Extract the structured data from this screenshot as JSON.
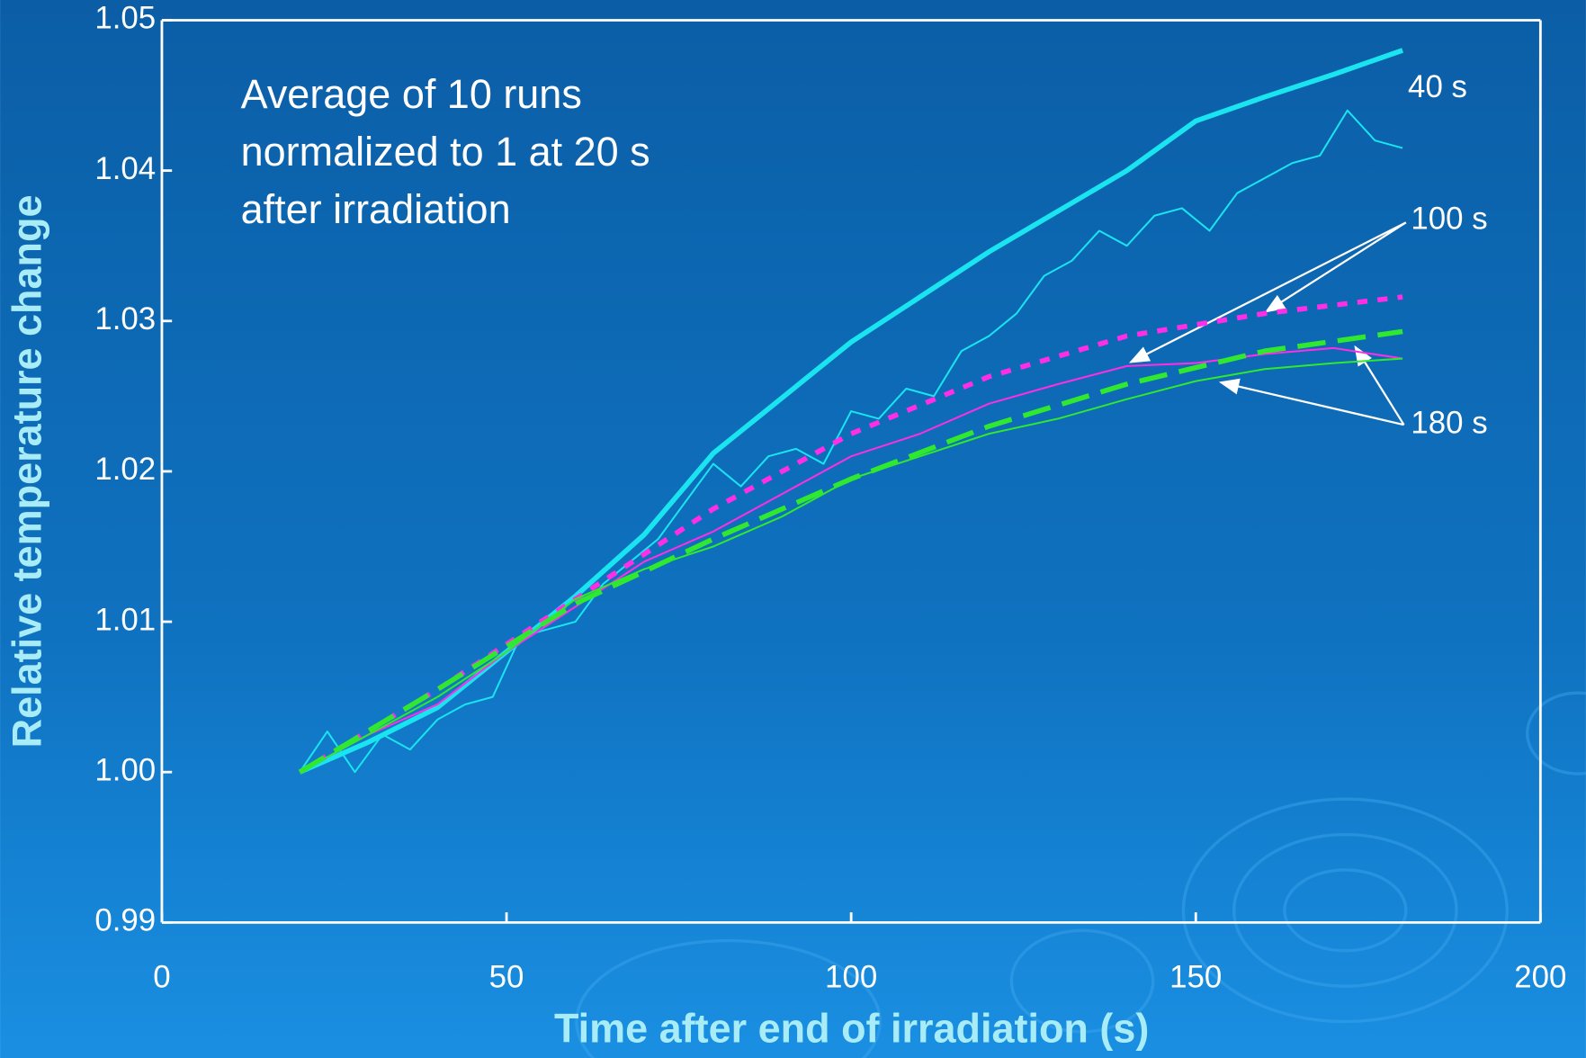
{
  "chart_data": {
    "type": "line",
    "x_label": "Time after end of irradiation (s)",
    "y_label": "Relative temperature change",
    "xlim": [
      0,
      200
    ],
    "xticks": [
      0,
      50,
      100,
      150,
      200
    ],
    "ylim": [
      0.99,
      1.05
    ],
    "yticks": [
      0.99,
      {
        "value": 1,
        "label": "1.00"
      },
      1.01,
      1.02,
      1.03,
      1.04,
      1.05
    ],
    "series": [
      {
        "color": "#19e4f0",
        "style": "thick",
        "x": [
          20,
          30,
          40,
          50,
          60,
          70,
          80,
          90,
          100,
          110,
          120,
          130,
          140,
          150,
          160,
          170,
          180
        ],
        "values": [
          1.0,
          1.002,
          1.0043,
          1.008,
          1.0117,
          1.0158,
          1.0212,
          1.0249,
          1.0286,
          1.0316,
          1.0346,
          1.0373,
          1.04,
          1.0433,
          1.0449,
          1.0464,
          1.048
        ]
      },
      {
        "color": "#19e4f0",
        "style": "thin",
        "x": [
          20,
          24,
          28,
          32,
          36,
          40,
          44,
          48,
          52,
          56,
          60,
          64,
          68,
          72,
          76,
          80,
          84,
          88,
          92,
          96,
          100,
          104,
          108,
          112,
          116,
          120,
          124,
          128,
          132,
          136,
          140,
          144,
          148,
          152,
          156,
          160,
          164,
          168,
          172,
          176,
          180
        ],
        "values": [
          1.0,
          1.0027,
          1.0,
          1.0025,
          1.0015,
          1.0035,
          1.0045,
          1.005,
          1.009,
          1.0095,
          1.01,
          1.0125,
          1.014,
          1.0155,
          1.018,
          1.0205,
          1.019,
          1.021,
          1.0215,
          1.0205,
          1.024,
          1.0235,
          1.0255,
          1.025,
          1.028,
          1.029,
          1.0305,
          1.033,
          1.034,
          1.036,
          1.035,
          1.037,
          1.0375,
          1.036,
          1.0385,
          1.0395,
          1.0405,
          1.041,
          1.044,
          1.042,
          1.0415
        ]
      },
      {
        "color": "#ff2ee6",
        "style": "dotted",
        "x": [
          20,
          40,
          60,
          80,
          100,
          120,
          140,
          160,
          180
        ],
        "values": [
          1.0,
          1.0055,
          1.0115,
          1.0175,
          1.0225,
          1.0263,
          1.029,
          1.0305,
          1.0316
        ]
      },
      {
        "color": "#ff2ee6",
        "style": "thin",
        "x": [
          20,
          30,
          40,
          50,
          60,
          70,
          80,
          90,
          100,
          110,
          120,
          130,
          140,
          150,
          160,
          170,
          180
        ],
        "values": [
          1.0,
          1.0025,
          1.0045,
          1.008,
          1.011,
          1.014,
          1.016,
          1.0185,
          1.021,
          1.0225,
          1.0245,
          1.0258,
          1.027,
          1.0272,
          1.0278,
          1.0282,
          1.0275
        ]
      },
      {
        "color": "#2fe82f",
        "style": "dashed",
        "x": [
          20,
          40,
          60,
          80,
          100,
          120,
          140,
          160,
          180
        ],
        "values": [
          1.0,
          1.0055,
          1.0112,
          1.0155,
          1.0195,
          1.023,
          1.0258,
          1.028,
          1.0293
        ]
      },
      {
        "color": "#2fe82f",
        "style": "thin",
        "x": [
          20,
          30,
          40,
          50,
          60,
          70,
          80,
          90,
          100,
          110,
          120,
          130,
          140,
          150,
          160,
          170,
          180
        ],
        "values": [
          1.0,
          1.0025,
          1.005,
          1.008,
          1.0115,
          1.0135,
          1.015,
          1.017,
          1.0195,
          1.021,
          1.0225,
          1.0235,
          1.0248,
          1.026,
          1.0268,
          1.0272,
          1.0275
        ]
      }
    ],
    "annotations": [
      "40 s",
      "100 s",
      "180 s"
    ],
    "note": [
      "Average of 10 runs",
      "normalized to 1 at 20 s",
      "after irradiation"
    ]
  }
}
